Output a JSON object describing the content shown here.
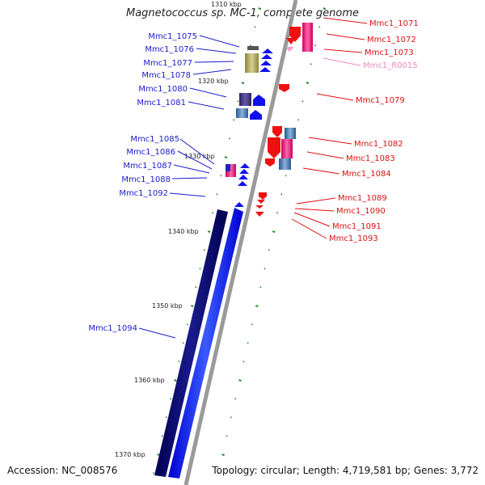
{
  "title": "Magnetococcus sp. MC-1, complete genome",
  "footer": {
    "accession": "Accession: NC_008576",
    "summary": "Topology: circular; Length: 4,719,581 bp; Genes: 3,772"
  },
  "colors": {
    "backbone": "#9a9a9a",
    "minus_label": "#1a1acc",
    "plus_label": "#dd1111",
    "rna_label": "#ee88bb",
    "tick_mark": "#2a8a2a"
  },
  "ticks": [
    {
      "label": "1310 kbp"
    },
    {
      "label": "1320 kbp"
    },
    {
      "label": "1330 kbp"
    },
    {
      "label": "1340 kbp"
    },
    {
      "label": "1350 kbp"
    },
    {
      "label": "1360 kbp"
    },
    {
      "label": "1370 kbp"
    }
  ],
  "left_genes": [
    {
      "name": "Mmc1_1075"
    },
    {
      "name": "Mmc1_1076"
    },
    {
      "name": "Mmc1_1077"
    },
    {
      "name": "Mmc1_1078"
    },
    {
      "name": "Mmc1_1080"
    },
    {
      "name": "Mmc1_1081"
    },
    {
      "name": "Mmc1_1085"
    },
    {
      "name": "Mmc1_1086"
    },
    {
      "name": "Mmc1_1087"
    },
    {
      "name": "Mmc1_1088"
    },
    {
      "name": "Mmc1_1092"
    },
    {
      "name": "Mmc1_1094"
    }
  ],
  "right_genes": [
    {
      "name": "Mmc1_1071"
    },
    {
      "name": "Mmc1_1072"
    },
    {
      "name": "Mmc1_1073"
    },
    {
      "name": "Mmc1_R0015",
      "rna": true
    },
    {
      "name": "Mmc1_1079"
    },
    {
      "name": "Mmc1_1082"
    },
    {
      "name": "Mmc1_1083"
    },
    {
      "name": "Mmc1_1084"
    },
    {
      "name": "Mmc1_1089"
    },
    {
      "name": "Mmc1_1090"
    },
    {
      "name": "Mmc1_1091"
    },
    {
      "name": "Mmc1_1093"
    }
  ]
}
